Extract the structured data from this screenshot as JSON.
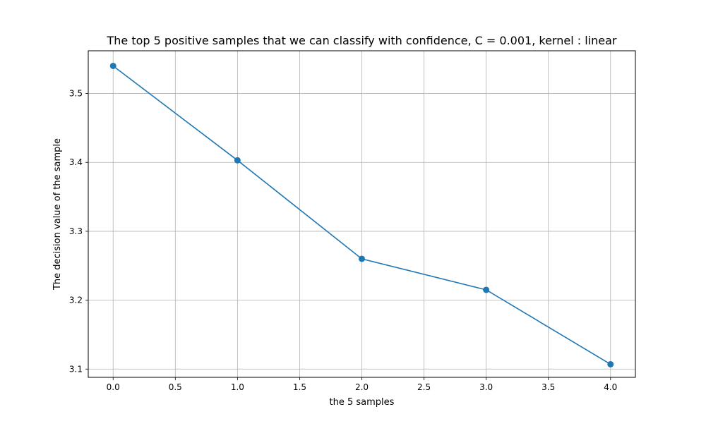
{
  "chart_data": {
    "type": "line",
    "title": "The top 5 positive samples that we can classify with confidence, C = 0.001, kernel : linear",
    "xlabel": "the 5 samples",
    "ylabel": "The decision value of the sample",
    "x": [
      0,
      1,
      2,
      3,
      4
    ],
    "series": [
      {
        "values": [
          3.54,
          3.403,
          3.26,
          3.215,
          3.107
        ],
        "color": "#1f77b4",
        "marker": "circle"
      }
    ],
    "xlim": [
      -0.2,
      4.2
    ],
    "ylim": [
      3.088,
      3.562
    ],
    "xticks": [
      0.0,
      0.5,
      1.0,
      1.5,
      2.0,
      2.5,
      3.0,
      3.5,
      4.0
    ],
    "xtick_labels": [
      "0.0",
      "0.5",
      "1.0",
      "1.5",
      "2.0",
      "2.5",
      "3.0",
      "3.5",
      "4.0"
    ],
    "yticks": [
      3.1,
      3.2,
      3.3,
      3.4,
      3.5
    ],
    "ytick_labels": [
      "3.1",
      "3.2",
      "3.3",
      "3.4",
      "3.5"
    ],
    "grid": true,
    "grid_color": "#b0b0b0",
    "legend": false
  }
}
